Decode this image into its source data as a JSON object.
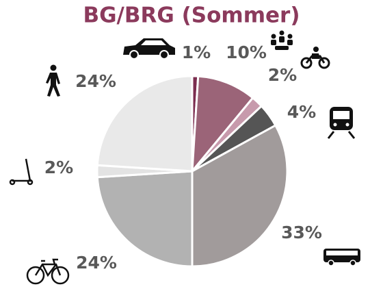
{
  "chart_data": {
    "type": "pie",
    "title": "BG/BRG (Sommer)",
    "values": [
      1,
      10,
      2,
      4,
      33,
      24,
      2,
      24
    ],
    "value_labels": [
      "1%",
      "10%",
      "2%",
      "4%",
      "33%",
      "24%",
      "2%",
      "24%"
    ],
    "colors": [
      "#7b2d4f",
      "#9b6478",
      "#c79aac",
      "#555555",
      "#a19b9b",
      "#b2b2b2",
      "#e3e3e3",
      "#e9e9e9"
    ]
  }
}
